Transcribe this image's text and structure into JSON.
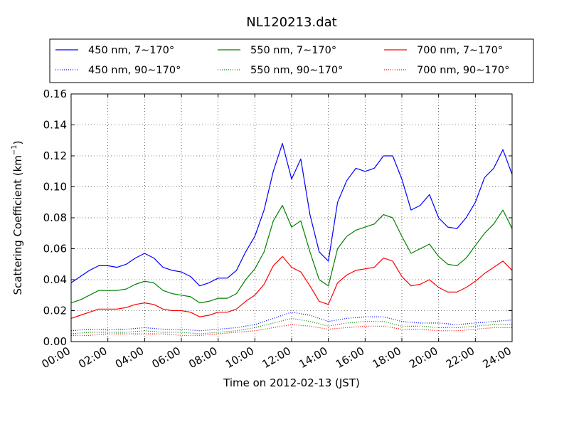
{
  "chart_data": {
    "type": "line",
    "title": "NL120213.dat",
    "xlabel": "Time on 2012-02-13 (JST)",
    "ylabel_main": "Scattering Coefficient (km",
    "ylabel_sup": "−1",
    "ylabel_close": ")",
    "xlim": [
      0,
      24
    ],
    "ylim": [
      0,
      0.16
    ],
    "x_unit": "hours",
    "x_ticks": [
      0,
      2,
      4,
      6,
      8,
      10,
      12,
      14,
      16,
      18,
      20,
      22,
      24
    ],
    "x_tick_labels": [
      "00:00",
      "02:00",
      "04:00",
      "06:00",
      "08:00",
      "10:00",
      "12:00",
      "14:00",
      "16:00",
      "18:00",
      "20:00",
      "22:00",
      "24:00"
    ],
    "y_ticks": [
      0,
      0.02,
      0.04,
      0.06,
      0.08,
      0.1,
      0.12,
      0.14,
      0.16
    ],
    "y_tick_labels": [
      "0.00",
      "0.02",
      "0.04",
      "0.06",
      "0.08",
      "0.10",
      "0.12",
      "0.14",
      "0.16"
    ],
    "grid": true,
    "legend_position": "top (above plot)",
    "series": [
      {
        "name": "450 nm, 7∼170°",
        "color": "#0000ff",
        "style": "solid",
        "x": [
          0,
          0.5,
          1,
          1.5,
          2,
          2.5,
          3,
          3.5,
          4,
          4.5,
          5,
          5.5,
          6,
          6.5,
          7,
          7.5,
          8,
          8.5,
          9,
          9.5,
          10,
          10.5,
          11,
          11.5,
          12,
          12.5,
          13,
          13.5,
          14,
          14.5,
          15,
          15.5,
          16,
          16.5,
          17,
          17.5,
          18,
          18.5,
          19,
          19.5,
          20,
          20.5,
          21,
          21.5,
          22,
          22.5,
          23,
          23.5,
          24
        ],
        "y": [
          0.038,
          0.042,
          0.046,
          0.049,
          0.049,
          0.048,
          0.05,
          0.054,
          0.057,
          0.054,
          0.048,
          0.046,
          0.045,
          0.042,
          0.036,
          0.038,
          0.041,
          0.041,
          0.046,
          0.058,
          0.068,
          0.085,
          0.11,
          0.128,
          0.105,
          0.118,
          0.082,
          0.058,
          0.052,
          0.09,
          0.104,
          0.112,
          0.11,
          0.112,
          0.12,
          0.12,
          0.105,
          0.085,
          0.088,
          0.095,
          0.08,
          0.074,
          0.073,
          0.08,
          0.09,
          0.106,
          0.112,
          0.124,
          0.108
        ]
      },
      {
        "name": "550 nm, 7∼170°",
        "color": "#008000",
        "style": "solid",
        "x": [
          0,
          0.5,
          1,
          1.5,
          2,
          2.5,
          3,
          3.5,
          4,
          4.5,
          5,
          5.5,
          6,
          6.5,
          7,
          7.5,
          8,
          8.5,
          9,
          9.5,
          10,
          10.5,
          11,
          11.5,
          12,
          12.5,
          13,
          13.5,
          14,
          14.5,
          15,
          15.5,
          16,
          16.5,
          17,
          17.5,
          18,
          18.5,
          19,
          19.5,
          20,
          20.5,
          21,
          21.5,
          22,
          22.5,
          23,
          23.5,
          24
        ],
        "y": [
          0.025,
          0.027,
          0.03,
          0.033,
          0.033,
          0.033,
          0.034,
          0.037,
          0.039,
          0.038,
          0.033,
          0.031,
          0.03,
          0.029,
          0.025,
          0.026,
          0.028,
          0.028,
          0.031,
          0.04,
          0.047,
          0.058,
          0.078,
          0.088,
          0.074,
          0.078,
          0.058,
          0.04,
          0.036,
          0.06,
          0.068,
          0.072,
          0.074,
          0.076,
          0.082,
          0.08,
          0.068,
          0.057,
          0.06,
          0.063,
          0.055,
          0.05,
          0.049,
          0.054,
          0.062,
          0.07,
          0.076,
          0.085,
          0.073
        ]
      },
      {
        "name": "700 nm, 7∼170°",
        "color": "#ff0000",
        "style": "solid",
        "x": [
          0,
          0.5,
          1,
          1.5,
          2,
          2.5,
          3,
          3.5,
          4,
          4.5,
          5,
          5.5,
          6,
          6.5,
          7,
          7.5,
          8,
          8.5,
          9,
          9.5,
          10,
          10.5,
          11,
          11.5,
          12,
          12.5,
          13,
          13.5,
          14,
          14.5,
          15,
          15.5,
          16,
          16.5,
          17,
          17.5,
          18,
          18.5,
          19,
          19.5,
          20,
          20.5,
          21,
          21.5,
          22,
          22.5,
          23,
          23.5,
          24
        ],
        "y": [
          0.015,
          0.017,
          0.019,
          0.021,
          0.021,
          0.021,
          0.022,
          0.024,
          0.025,
          0.024,
          0.021,
          0.02,
          0.02,
          0.019,
          0.016,
          0.017,
          0.019,
          0.019,
          0.021,
          0.026,
          0.03,
          0.037,
          0.049,
          0.055,
          0.048,
          0.045,
          0.036,
          0.026,
          0.024,
          0.038,
          0.043,
          0.046,
          0.047,
          0.048,
          0.054,
          0.052,
          0.042,
          0.036,
          0.037,
          0.04,
          0.035,
          0.032,
          0.032,
          0.035,
          0.039,
          0.044,
          0.048,
          0.052,
          0.046
        ]
      },
      {
        "name": "450 nm, 90∼170°",
        "color": "#0000ff",
        "style": "dotted",
        "x": [
          0,
          1,
          2,
          3,
          4,
          5,
          6,
          7,
          8,
          9,
          10,
          11,
          12,
          13,
          14,
          15,
          16,
          17,
          18,
          19,
          20,
          21,
          22,
          23,
          24
        ],
        "y": [
          0.007,
          0.008,
          0.008,
          0.008,
          0.009,
          0.008,
          0.008,
          0.007,
          0.008,
          0.009,
          0.011,
          0.015,
          0.019,
          0.017,
          0.013,
          0.015,
          0.016,
          0.016,
          0.013,
          0.012,
          0.012,
          0.011,
          0.012,
          0.013,
          0.014
        ]
      },
      {
        "name": "550 nm, 90∼170°",
        "color": "#008000",
        "style": "dotted",
        "x": [
          0,
          1,
          2,
          3,
          4,
          5,
          6,
          7,
          8,
          9,
          10,
          11,
          12,
          13,
          14,
          15,
          16,
          17,
          18,
          19,
          20,
          21,
          22,
          23,
          24
        ],
        "y": [
          0.005,
          0.006,
          0.006,
          0.006,
          0.007,
          0.006,
          0.006,
          0.005,
          0.006,
          0.007,
          0.009,
          0.012,
          0.015,
          0.013,
          0.01,
          0.012,
          0.013,
          0.013,
          0.01,
          0.01,
          0.009,
          0.009,
          0.01,
          0.011,
          0.011
        ]
      },
      {
        "name": "700 nm, 90∼170°",
        "color": "#ff0000",
        "style": "dotted",
        "x": [
          0,
          1,
          2,
          3,
          4,
          5,
          6,
          7,
          8,
          9,
          10,
          11,
          12,
          13,
          14,
          15,
          16,
          17,
          18,
          19,
          20,
          21,
          22,
          23,
          24
        ],
        "y": [
          0.004,
          0.004,
          0.005,
          0.005,
          0.005,
          0.005,
          0.004,
          0.004,
          0.005,
          0.006,
          0.007,
          0.009,
          0.011,
          0.01,
          0.008,
          0.009,
          0.01,
          0.01,
          0.008,
          0.008,
          0.007,
          0.007,
          0.008,
          0.009,
          0.009
        ]
      }
    ]
  }
}
